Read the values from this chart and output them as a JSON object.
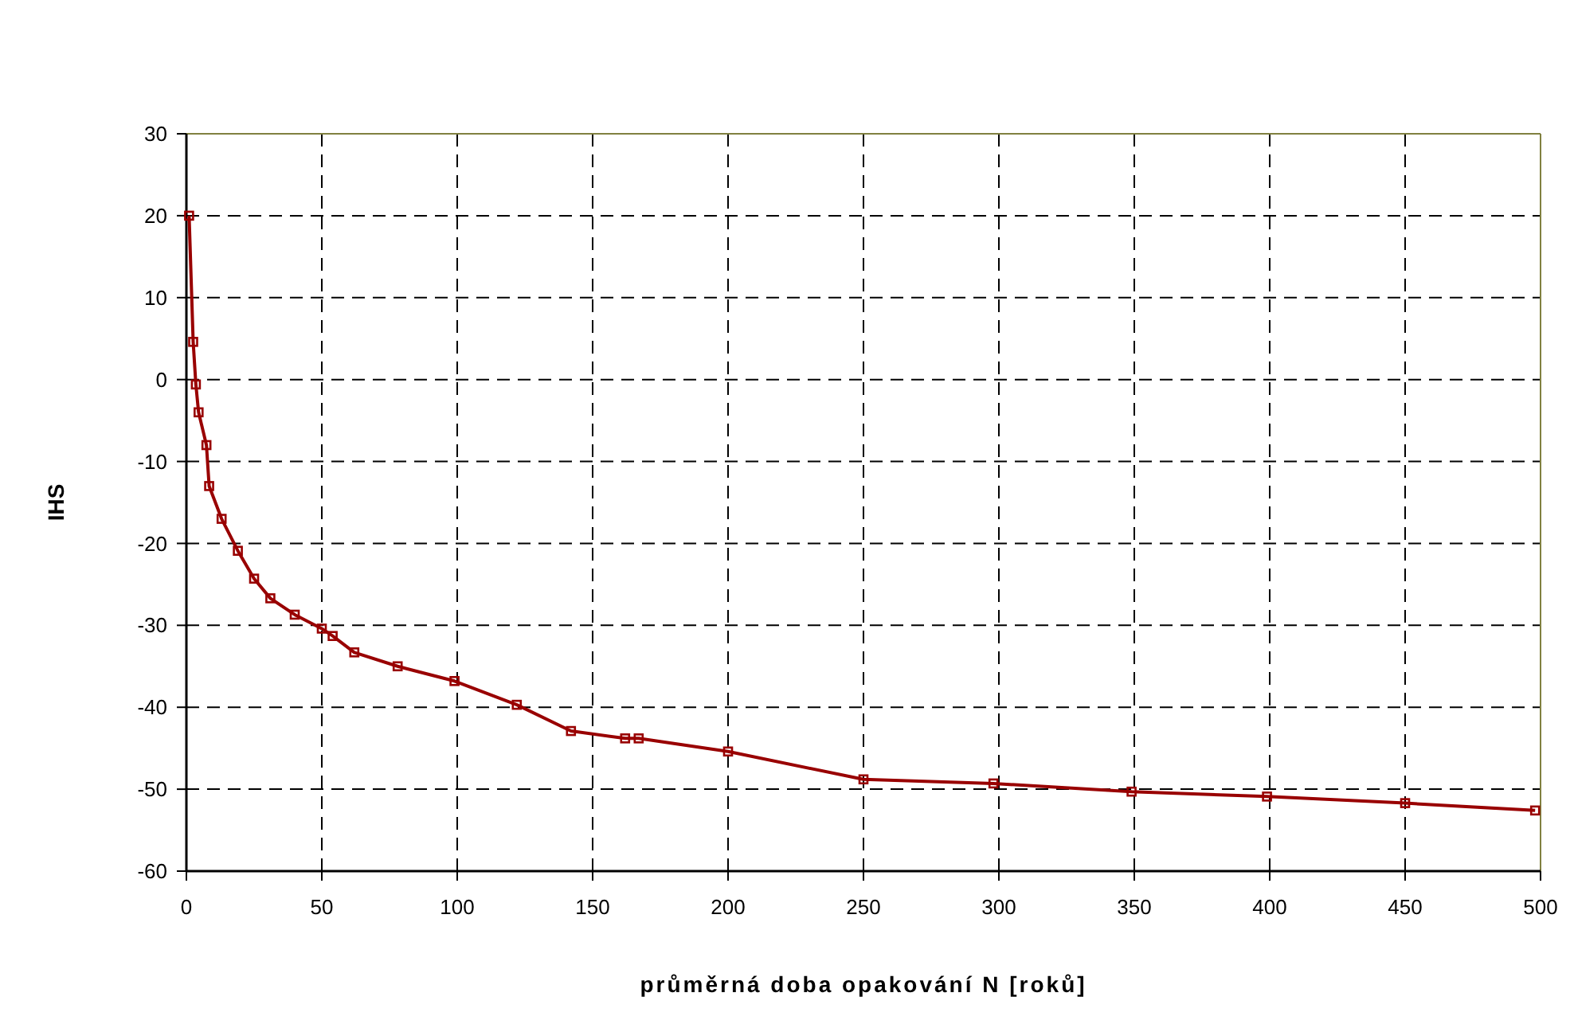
{
  "chart_data": {
    "type": "line",
    "xlabel": "průměrná doba opakování N [roků]",
    "ylabel": "IHS",
    "xlim": [
      0,
      500
    ],
    "ylim": [
      -60,
      30
    ],
    "xticks": [
      0,
      50,
      100,
      150,
      200,
      250,
      300,
      350,
      400,
      450,
      500
    ],
    "yticks": [
      -60,
      -50,
      -40,
      -30,
      -20,
      -10,
      0,
      10,
      20,
      30
    ],
    "grid": true,
    "marker": "square",
    "line_style": "solid",
    "series": [
      {
        "color": "#990000",
        "x": [
          1,
          2.5,
          3.5,
          4.5,
          7.4,
          8.4,
          13,
          19,
          25,
          31,
          40,
          50,
          54,
          62,
          78,
          99,
          122,
          142,
          162,
          167,
          200,
          250,
          298,
          349,
          399,
          450,
          498
        ],
        "values": [
          20,
          4.6,
          -0.6,
          -4,
          -8,
          -13,
          -17,
          -20.9,
          -24.3,
          -26.7,
          -28.7,
          -30.4,
          -31.3,
          -33.3,
          -35,
          -36.8,
          -39.7,
          -42.9,
          -43.8,
          -43.8,
          -45.4,
          -48.8,
          -49.3,
          -50.3,
          -50.9,
          -51.7,
          -52.6
        ]
      }
    ]
  }
}
